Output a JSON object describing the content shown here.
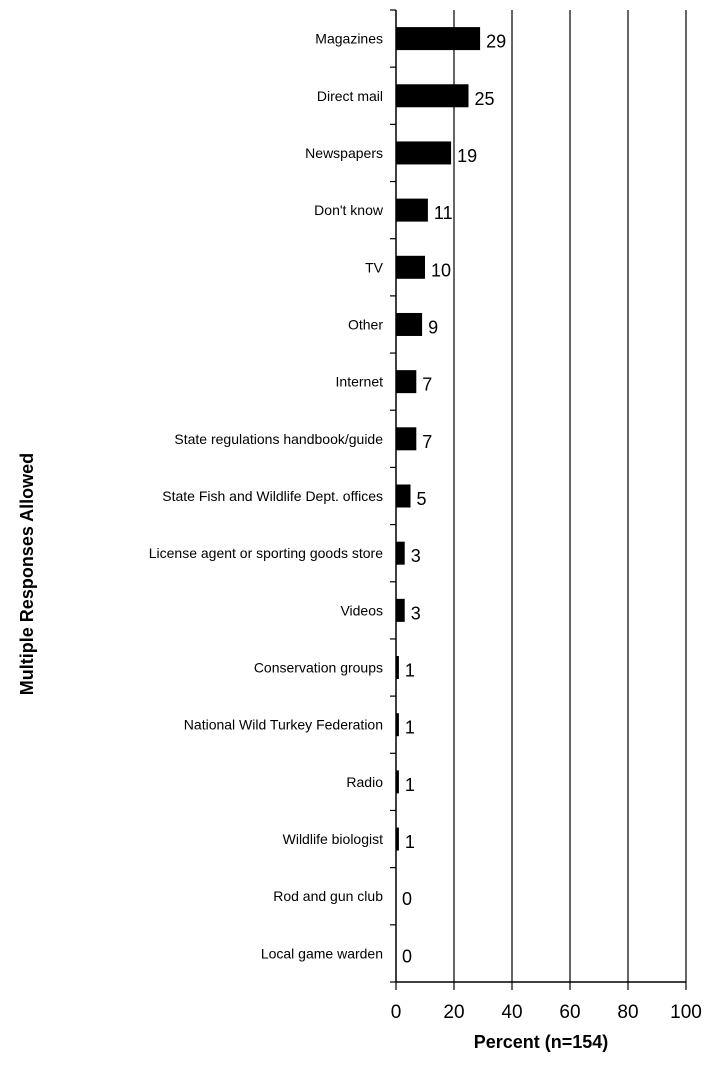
{
  "chart_data": {
    "type": "bar",
    "orientation": "horizontal",
    "categories": [
      "Magazines",
      "Direct mail",
      "Newspapers",
      "Don't know",
      "TV",
      "Other",
      "Internet",
      "State regulations handbook/guide",
      "State Fish and Wildlife Dept. offices",
      "License agent or sporting goods store",
      "Videos",
      "Conservation groups",
      "National Wild Turkey Federation",
      "Radio",
      "Wildlife biologist",
      "Rod and gun club",
      "Local game warden"
    ],
    "values": [
      29,
      25,
      19,
      11,
      10,
      9,
      7,
      7,
      5,
      3,
      3,
      1,
      1,
      1,
      1,
      0,
      0
    ],
    "value_labels": [
      "29",
      "25",
      "19",
      "11",
      "10",
      "9",
      "7",
      "7",
      "5",
      "3",
      "3",
      "1",
      "1",
      "1",
      "1",
      "0",
      "0"
    ],
    "xlabel": "Percent (n=154)",
    "ylabel": "Multiple Responses Allowed",
    "xlim": [
      0,
      100
    ],
    "xticks": [
      0,
      20,
      40,
      60,
      80,
      100
    ],
    "xtick_labels": [
      "0",
      "20",
      "40",
      "60",
      "80",
      "100"
    ],
    "grid": "vertical lines at major ticks",
    "bar_color": "#000000"
  }
}
